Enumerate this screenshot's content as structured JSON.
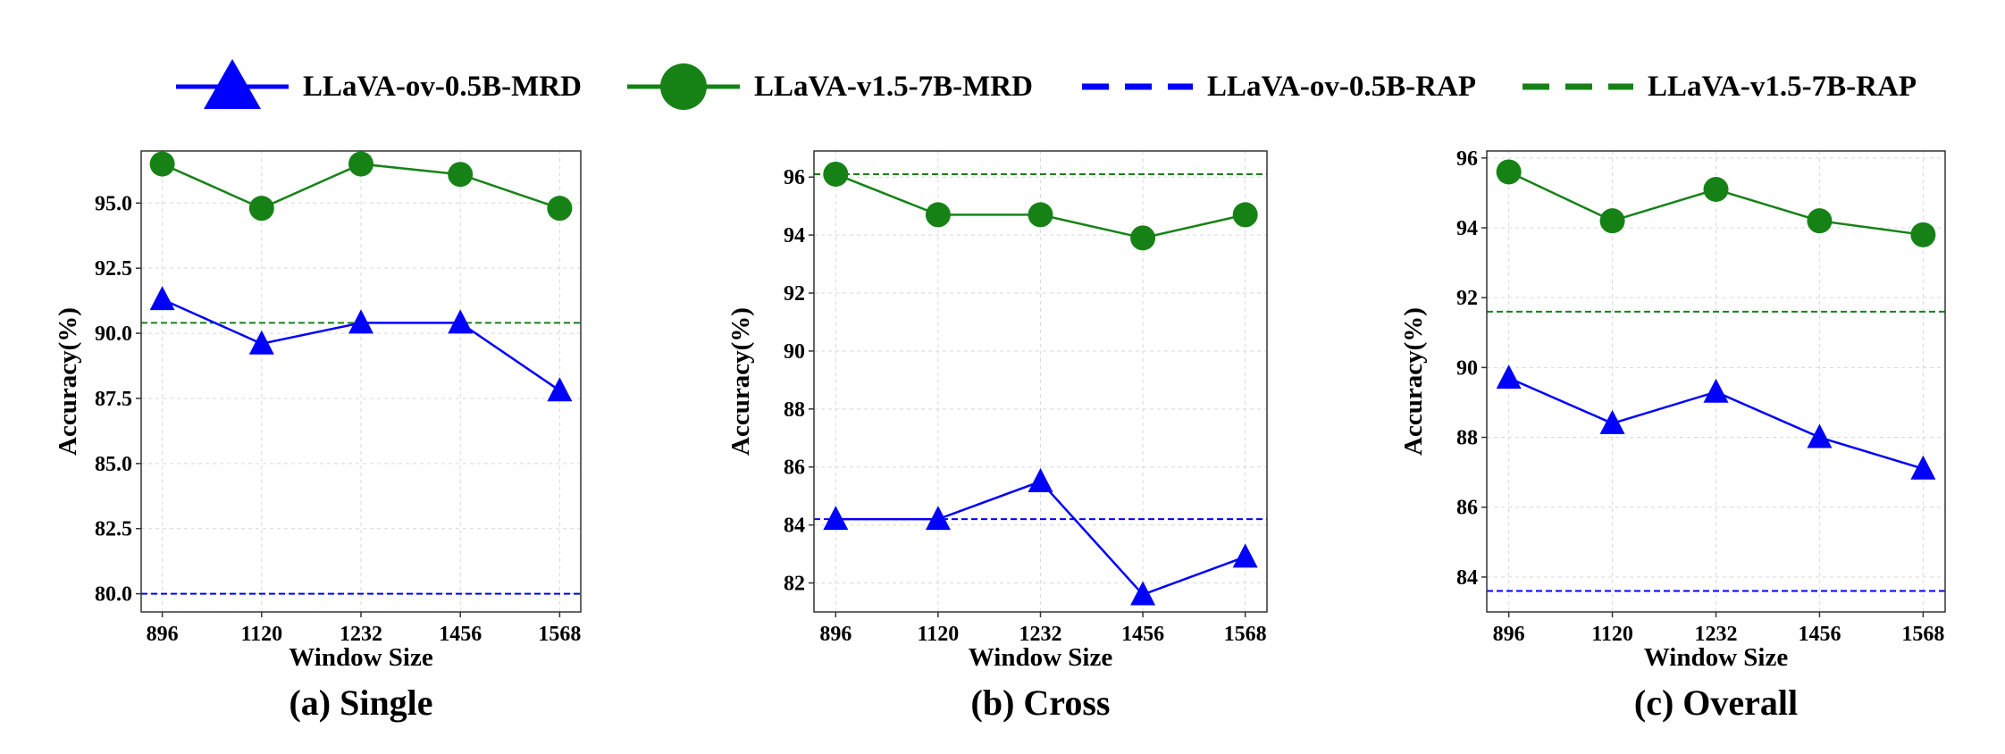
{
  "colors": {
    "blue": "#0000ff",
    "green": "#168216",
    "grid": "#d9d9d9",
    "axis": "#333333"
  },
  "legend": [
    {
      "label": "LLaVA-ov-0.5B-MRD",
      "kind": "line-triangle",
      "color": "#0000ff"
    },
    {
      "label": "LLaVA-v1.5-7B-MRD",
      "kind": "line-circle",
      "color": "#168216"
    },
    {
      "label": "LLaVA-ov-0.5B-RAP",
      "kind": "dashed",
      "color": "#0000ff"
    },
    {
      "label": "LLaVA-v1.5-7B-RAP",
      "kind": "dashed",
      "color": "#168216"
    }
  ],
  "chart_data": [
    {
      "type": "line",
      "title": "(a) Single",
      "xlabel": "Window Size",
      "ylabel": "Accuracy(%)",
      "categories": [
        "896",
        "1120",
        "1232",
        "1456",
        "1568"
      ],
      "ylim": [
        79.3,
        97.0
      ],
      "yticks": [
        80.0,
        82.5,
        85.0,
        87.5,
        90.0,
        92.5,
        95.0
      ],
      "ytick_labels": [
        "80.0",
        "82.5",
        "85.0",
        "87.5",
        "90.0",
        "92.5",
        "95.0"
      ],
      "grid": true,
      "series": [
        {
          "name": "LLaVA-ov-0.5B-MRD",
          "marker": "triangle",
          "color": "#0000ff",
          "values": [
            91.3,
            89.6,
            90.4,
            90.4,
            87.8
          ]
        },
        {
          "name": "LLaVA-v1.5-7B-MRD",
          "marker": "circle",
          "color": "#168216",
          "values": [
            96.5,
            94.8,
            96.5,
            96.1,
            94.8
          ]
        }
      ],
      "baselines": [
        {
          "name": "LLaVA-ov-0.5B-RAP",
          "color": "#0000ff",
          "value": 80.0
        },
        {
          "name": "LLaVA-v1.5-7B-RAP",
          "color": "#168216",
          "value": 90.4
        }
      ]
    },
    {
      "type": "line",
      "title": "(b) Cross",
      "xlabel": "Window Size",
      "ylabel": "Accuracy(%)",
      "categories": [
        "896",
        "1120",
        "1232",
        "1456",
        "1568"
      ],
      "ylim": [
        81.0,
        96.9
      ],
      "yticks": [
        82,
        84,
        86,
        88,
        90,
        92,
        94,
        96
      ],
      "ytick_labels": [
        "82",
        "84",
        "86",
        "88",
        "90",
        "92",
        "94",
        "96"
      ],
      "grid": true,
      "series": [
        {
          "name": "LLaVA-ov-0.5B-MRD",
          "marker": "triangle",
          "color": "#0000ff",
          "values": [
            84.2,
            84.2,
            85.5,
            81.6,
            82.9
          ]
        },
        {
          "name": "LLaVA-v1.5-7B-MRD",
          "marker": "circle",
          "color": "#168216",
          "values": [
            96.1,
            94.7,
            94.7,
            93.9,
            94.7
          ]
        }
      ],
      "baselines": [
        {
          "name": "LLaVA-ov-0.5B-RAP",
          "color": "#0000ff",
          "value": 84.2
        },
        {
          "name": "LLaVA-v1.5-7B-RAP",
          "color": "#168216",
          "value": 96.1
        }
      ]
    },
    {
      "type": "line",
      "title": "(c) Overall",
      "xlabel": "Window Size",
      "ylabel": "Accuracy(%)",
      "categories": [
        "896",
        "1120",
        "1232",
        "1456",
        "1568"
      ],
      "ylim": [
        83.0,
        96.2
      ],
      "yticks": [
        84,
        86,
        88,
        90,
        92,
        94,
        96
      ],
      "ytick_labels": [
        "84",
        "86",
        "88",
        "90",
        "92",
        "94",
        "96"
      ],
      "grid": true,
      "series": [
        {
          "name": "LLaVA-ov-0.5B-MRD",
          "marker": "triangle",
          "color": "#0000ff",
          "values": [
            89.7,
            88.4,
            89.3,
            88.0,
            87.1
          ]
        },
        {
          "name": "LLaVA-v1.5-7B-MRD",
          "marker": "circle",
          "color": "#168216",
          "values": [
            95.6,
            94.2,
            95.1,
            94.2,
            93.8
          ]
        }
      ],
      "baselines": [
        {
          "name": "LLaVA-ov-0.5B-RAP",
          "color": "#0000ff",
          "value": 83.6
        },
        {
          "name": "LLaVA-v1.5-7B-RAP",
          "color": "#168216",
          "value": 91.6
        }
      ]
    }
  ]
}
